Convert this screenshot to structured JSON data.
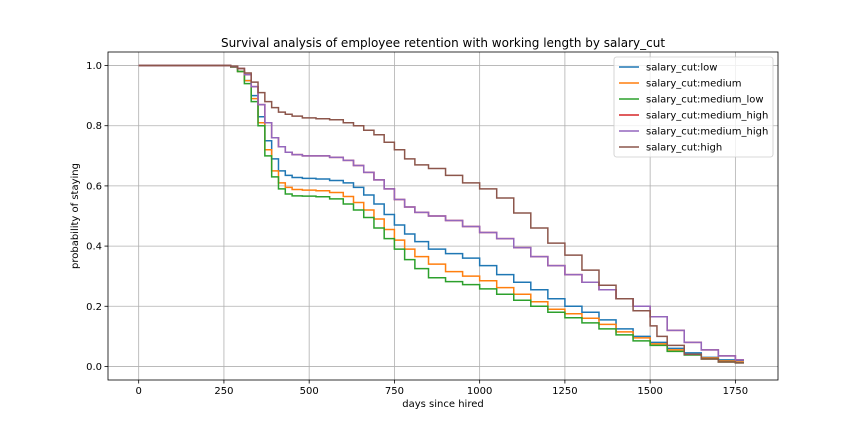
{
  "chart_data": {
    "type": "line",
    "title": "Survival analysis of employee retention with working length by salary_cut",
    "xlabel": "days since hired",
    "ylabel": "probability of staying",
    "xlim": [
      -90,
      1875
    ],
    "ylim": [
      -0.045,
      1.045
    ],
    "xticks": [
      0,
      250,
      500,
      750,
      1000,
      1250,
      1500,
      1750
    ],
    "yticks": [
      0.0,
      0.2,
      0.4,
      0.6,
      0.8,
      1.0
    ],
    "xtick_labels": [
      "0",
      "250",
      "500",
      "750",
      "1000",
      "1250",
      "1500",
      "1750"
    ],
    "ytick_labels": [
      "0.0",
      "0.2",
      "0.4",
      "0.6",
      "0.8",
      "1.0"
    ],
    "grid": true,
    "legend_position": "top-right",
    "step": true,
    "series": [
      {
        "name": "salary_cut:low",
        "color": "#1f77b4",
        "x": [
          0,
          250,
          270,
          290,
          310,
          330,
          350,
          370,
          390,
          410,
          430,
          450,
          480,
          520,
          560,
          600,
          630,
          660,
          690,
          720,
          750,
          780,
          810,
          850,
          900,
          950,
          1000,
          1050,
          1100,
          1150,
          1200,
          1250,
          1300,
          1350,
          1400,
          1450,
          1500,
          1550,
          1600,
          1650,
          1700,
          1750,
          1775
        ],
        "y": [
          1.0,
          1.0,
          0.995,
          0.98,
          0.95,
          0.9,
          0.83,
          0.75,
          0.69,
          0.65,
          0.635,
          0.628,
          0.625,
          0.623,
          0.618,
          0.61,
          0.595,
          0.57,
          0.54,
          0.505,
          0.47,
          0.44,
          0.415,
          0.39,
          0.375,
          0.36,
          0.335,
          0.305,
          0.28,
          0.255,
          0.225,
          0.2,
          0.18,
          0.155,
          0.125,
          0.1,
          0.08,
          0.06,
          0.045,
          0.03,
          0.022,
          0.02,
          0.02
        ]
      },
      {
        "name": "salary_cut:medium",
        "color": "#ff7f0e",
        "x": [
          0,
          250,
          270,
          290,
          310,
          330,
          350,
          370,
          390,
          410,
          430,
          450,
          480,
          520,
          560,
          600,
          630,
          660,
          690,
          720,
          750,
          780,
          810,
          850,
          900,
          950,
          1000,
          1050,
          1100,
          1150,
          1200,
          1250,
          1300,
          1350,
          1400,
          1450,
          1500,
          1550,
          1600,
          1650,
          1700,
          1750,
          1775
        ],
        "y": [
          1.0,
          1.0,
          0.995,
          0.98,
          0.95,
          0.89,
          0.81,
          0.72,
          0.65,
          0.61,
          0.595,
          0.588,
          0.586,
          0.584,
          0.578,
          0.565,
          0.545,
          0.52,
          0.49,
          0.455,
          0.42,
          0.39,
          0.365,
          0.34,
          0.315,
          0.3,
          0.285,
          0.262,
          0.24,
          0.215,
          0.19,
          0.175,
          0.16,
          0.14,
          0.115,
          0.095,
          0.075,
          0.055,
          0.04,
          0.028,
          0.018,
          0.015,
          0.015
        ]
      },
      {
        "name": "salary_cut:medium_low",
        "color": "#2ca02c",
        "x": [
          0,
          250,
          270,
          290,
          310,
          330,
          350,
          370,
          390,
          410,
          430,
          450,
          480,
          520,
          560,
          600,
          630,
          660,
          690,
          720,
          750,
          780,
          810,
          850,
          900,
          950,
          1000,
          1050,
          1100,
          1150,
          1200,
          1250,
          1300,
          1350,
          1400,
          1450,
          1500,
          1550,
          1600,
          1650,
          1700,
          1750,
          1775
        ],
        "y": [
          1.0,
          1.0,
          0.995,
          0.98,
          0.94,
          0.88,
          0.8,
          0.7,
          0.63,
          0.59,
          0.573,
          0.567,
          0.566,
          0.564,
          0.557,
          0.54,
          0.52,
          0.495,
          0.46,
          0.425,
          0.39,
          0.355,
          0.325,
          0.295,
          0.282,
          0.272,
          0.258,
          0.24,
          0.22,
          0.2,
          0.18,
          0.162,
          0.145,
          0.125,
          0.105,
          0.085,
          0.07,
          0.05,
          0.038,
          0.025,
          0.015,
          0.012,
          0.012
        ]
      },
      {
        "name": "salary_cut:medium_high",
        "color": "#d62728",
        "x": [
          0,
          250,
          270,
          290,
          310,
          330,
          350,
          370,
          390,
          410,
          430,
          450,
          480,
          520,
          560,
          600,
          630,
          660,
          690,
          720,
          750,
          780,
          810,
          850,
          900,
          950,
          1000,
          1050,
          1100,
          1150,
          1200,
          1250,
          1300,
          1350,
          1400,
          1450,
          1500,
          1550,
          1600,
          1650,
          1700,
          1750,
          1775
        ],
        "y": [
          1.0,
          1.0,
          0.997,
          0.99,
          0.97,
          0.93,
          0.87,
          0.81,
          0.76,
          0.73,
          0.712,
          0.704,
          0.7,
          0.7,
          0.695,
          0.685,
          0.668,
          0.645,
          0.62,
          0.59,
          0.555,
          0.53,
          0.512,
          0.5,
          0.485,
          0.465,
          0.445,
          0.425,
          0.395,
          0.365,
          0.335,
          0.305,
          0.28,
          0.255,
          0.225,
          0.2,
          0.165,
          0.12,
          0.08,
          0.055,
          0.035,
          0.022,
          0.022
        ]
      },
      {
        "name": "salary_cut:medium_high",
        "color": "#9467bd",
        "x": [
          0,
          250,
          270,
          290,
          310,
          330,
          350,
          370,
          390,
          410,
          430,
          450,
          480,
          520,
          560,
          600,
          630,
          660,
          690,
          720,
          750,
          780,
          810,
          850,
          900,
          950,
          1000,
          1050,
          1100,
          1150,
          1200,
          1250,
          1300,
          1350,
          1400,
          1450,
          1500,
          1550,
          1600,
          1650,
          1700,
          1750,
          1775
        ],
        "y": [
          1.0,
          1.0,
          0.997,
          0.99,
          0.97,
          0.93,
          0.87,
          0.81,
          0.76,
          0.73,
          0.712,
          0.704,
          0.7,
          0.7,
          0.695,
          0.685,
          0.668,
          0.645,
          0.62,
          0.59,
          0.555,
          0.53,
          0.512,
          0.5,
          0.485,
          0.465,
          0.445,
          0.425,
          0.395,
          0.365,
          0.335,
          0.305,
          0.28,
          0.255,
          0.225,
          0.2,
          0.165,
          0.12,
          0.08,
          0.055,
          0.035,
          0.022,
          0.022
        ]
      },
      {
        "name": "salary_cut:high",
        "color": "#8c564b",
        "x": [
          0,
          250,
          270,
          290,
          310,
          330,
          350,
          370,
          390,
          410,
          430,
          450,
          480,
          520,
          560,
          600,
          630,
          660,
          690,
          720,
          750,
          780,
          810,
          850,
          900,
          950,
          1000,
          1050,
          1100,
          1150,
          1200,
          1250,
          1300,
          1350,
          1400,
          1450,
          1500,
          1520,
          1550,
          1600,
          1650,
          1700,
          1750,
          1775
        ],
        "y": [
          1.0,
          1.0,
          0.998,
          0.99,
          0.975,
          0.945,
          0.91,
          0.88,
          0.86,
          0.845,
          0.838,
          0.832,
          0.826,
          0.823,
          0.82,
          0.81,
          0.8,
          0.785,
          0.77,
          0.745,
          0.72,
          0.69,
          0.67,
          0.658,
          0.635,
          0.61,
          0.59,
          0.56,
          0.51,
          0.46,
          0.41,
          0.37,
          0.32,
          0.27,
          0.225,
          0.185,
          0.135,
          0.1,
          0.07,
          0.04,
          0.025,
          0.015,
          0.012,
          0.012
        ]
      }
    ]
  }
}
